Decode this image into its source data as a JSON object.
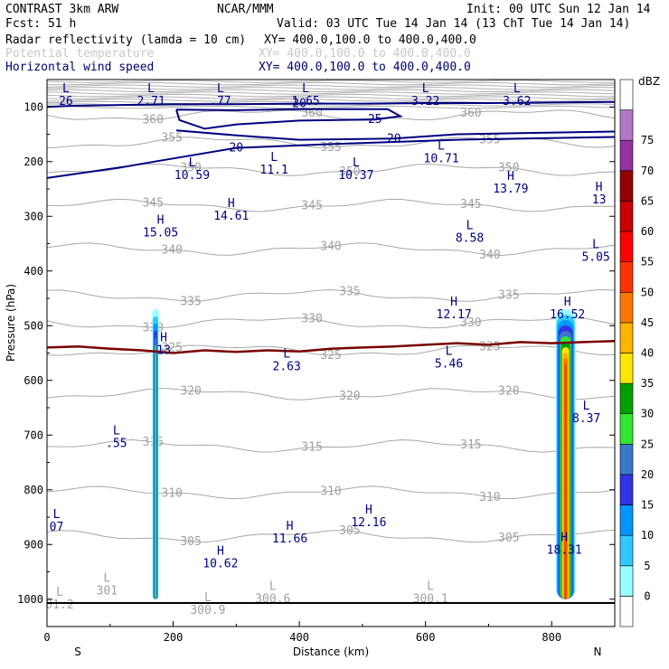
{
  "header": {
    "model": "CONTRAST  3km ARW",
    "institution": "NCAR/MMM",
    "init": "Init: 00 UTC Sun 12 Jan 14",
    "fcst": "Fcst:   51 h",
    "valid": "Valid: 03 UTC Tue 14 Jan 14 (13 ChT Tue 14 Jan 14)",
    "fields": [
      {
        "name": "Radar reflectivity (lamda = 10 cm)",
        "xy": "XY= 400.0,100.0 to 400.0,400.0",
        "color": "#000000"
      },
      {
        "name": "Potential temperature",
        "xy": "XY= 400.0,100.0 to 400.0,400.0",
        "color": "#c8c8c8"
      },
      {
        "name": "Horizontal wind speed",
        "xy": "XY= 400.0,100.0 to 400.0,400.0",
        "color": "#00006e"
      }
    ]
  },
  "chart_data": {
    "type": "cross-section",
    "xlabel": "Distance (km)",
    "ylabel": "Pressure (hPa)",
    "xlim": [
      0,
      900
    ],
    "ylim": [
      1050,
      50
    ],
    "xticks": [
      0,
      200,
      400,
      600,
      800
    ],
    "yticks": [
      100,
      200,
      300,
      400,
      500,
      600,
      700,
      800,
      900,
      1000
    ],
    "x_end_labels": {
      "left": "S",
      "right": "N"
    },
    "colorbar": {
      "unit": "dBZ",
      "levels": [
        0,
        5,
        10,
        15,
        20,
        25,
        30,
        35,
        40,
        45,
        50,
        55,
        60,
        65,
        70,
        75
      ],
      "colors": [
        "#ffffff",
        "#96ffff",
        "#32c8ff",
        "#0096ff",
        "#3232e6",
        "#3c78c8",
        "#32e632",
        "#00a000",
        "#ffe600",
        "#ffb400",
        "#ff7800",
        "#ff3200",
        "#ff0000",
        "#c80000",
        "#960000",
        "#9632a0",
        "#b478c8",
        "#ffffff"
      ]
    },
    "theta_contours": [
      {
        "value": 360,
        "p": 115
      },
      {
        "value": 355,
        "p": 165
      },
      {
        "value": 350,
        "p": 215
      },
      {
        "value": 345,
        "p": 280
      },
      {
        "value": 340,
        "p": 360
      },
      {
        "value": 335,
        "p": 445
      },
      {
        "value": 330,
        "p": 495
      },
      {
        "value": 325,
        "p": 545
      },
      {
        "value": 320,
        "p": 625
      },
      {
        "value": 315,
        "p": 720
      },
      {
        "value": 310,
        "p": 805
      },
      {
        "value": 305,
        "p": 885
      }
    ],
    "wind_contours": [
      {
        "value": 20,
        "points": [
          [
            0,
            100
          ],
          [
            40,
            98
          ],
          [
            100,
            97
          ],
          [
            200,
            95
          ],
          [
            300,
            95
          ],
          [
            400,
            94
          ],
          [
            500,
            94
          ],
          [
            600,
            93
          ],
          [
            700,
            93
          ],
          [
            800,
            92
          ],
          [
            900,
            91
          ]
        ]
      },
      {
        "value": 25,
        "points": [
          [
            205,
            105
          ],
          [
            300,
            106
          ],
          [
            400,
            104
          ],
          [
            540,
            104
          ],
          [
            560,
            117
          ],
          [
            520,
            123
          ],
          [
            400,
            125
          ],
          [
            300,
            132
          ],
          [
            250,
            140
          ],
          [
            210,
            124
          ],
          [
            205,
            105
          ]
        ]
      },
      {
        "value": 20,
        "points": [
          [
            205,
            143
          ],
          [
            300,
            152
          ],
          [
            400,
            160
          ],
          [
            550,
            158
          ],
          [
            650,
            150
          ],
          [
            750,
            148
          ],
          [
            900,
            145
          ]
        ]
      },
      {
        "value": 20,
        "points": [
          [
            0,
            230
          ],
          [
            60,
            220
          ],
          [
            120,
            210
          ],
          [
            170,
            200
          ],
          [
            300,
            175
          ],
          [
            450,
            168
          ],
          [
            650,
            160
          ],
          [
            900,
            155
          ]
        ]
      }
    ],
    "zero_isotherm": [
      [
        0,
        540
      ],
      [
        50,
        538
      ],
      [
        100,
        542
      ],
      [
        150,
        545
      ],
      [
        200,
        550
      ],
      [
        250,
        545
      ],
      [
        300,
        548
      ],
      [
        350,
        545
      ],
      [
        400,
        547
      ],
      [
        450,
        542
      ],
      [
        500,
        540
      ],
      [
        550,
        538
      ],
      [
        600,
        535
      ],
      [
        650,
        532
      ],
      [
        700,
        535
      ],
      [
        750,
        530
      ],
      [
        800,
        532
      ],
      [
        850,
        530
      ],
      [
        900,
        528
      ]
    ],
    "reflectivity_columns": [
      {
        "center_km": 172,
        "top_hPa": 470,
        "bottom_hPa": 1000,
        "max_dBZ": 30
      },
      {
        "center_km": 822,
        "top_hPa": 470,
        "bottom_hPa": 1000,
        "max_dBZ": 55
      }
    ],
    "annotations": [
      {
        "type": "L",
        "value": "26",
        "x": 30,
        "p": 80
      },
      {
        "type": "L",
        "value": "2.71",
        "x": 165,
        "p": 80
      },
      {
        "type": "L",
        "value": ".77",
        "x": 275,
        "p": 80
      },
      {
        "type": "L",
        "value": "1.65",
        "x": 410,
        "p": 80
      },
      {
        "type": "L",
        "value": "3.22",
        "x": 600,
        "p": 80
      },
      {
        "type": "L",
        "value": "3.62",
        "x": 745,
        "p": 80
      },
      {
        "type": "L",
        "value": "10.71",
        "x": 625,
        "p": 185
      },
      {
        "type": "L",
        "value": "10.59",
        "x": 230,
        "p": 215
      },
      {
        "type": "L",
        "value": "11.1",
        "x": 360,
        "p": 205
      },
      {
        "type": "L",
        "value": "10.37",
        "x": 490,
        "p": 215
      },
      {
        "type": "H",
        "value": "13.79",
        "x": 735,
        "p": 240
      },
      {
        "type": "H",
        "value": "13",
        "x": 875,
        "p": 260
      },
      {
        "type": "H",
        "value": "15.05",
        "x": 180,
        "p": 320
      },
      {
        "type": "H",
        "value": "14.61",
        "x": 292,
        "p": 290
      },
      {
        "type": "L",
        "value": "8.58",
        "x": 670,
        "p": 330
      },
      {
        "type": "L",
        "value": "5.05",
        "x": 870,
        "p": 365
      },
      {
        "type": "H",
        "value": "12.17",
        "x": 645,
        "p": 470
      },
      {
        "type": "H",
        "value": "16.52",
        "x": 825,
        "p": 470
      },
      {
        "type": "H",
        "value": "13",
        "x": 185,
        "p": 535
      },
      {
        "type": "L",
        "value": "2.63",
        "x": 380,
        "p": 565
      },
      {
        "type": "L",
        "value": "5.46",
        "x": 637,
        "p": 560
      },
      {
        "type": "L",
        "value": "8.37",
        "x": 855,
        "p": 660
      },
      {
        "type": "L",
        "value": ".55",
        "x": 110,
        "p": 705
      },
      {
        "type": "L",
        "value": "07",
        "x": 15,
        "p": 858
      },
      {
        "type": "H",
        "value": "12.16",
        "x": 510,
        "p": 850
      },
      {
        "type": "H",
        "value": "11.66",
        "x": 385,
        "p": 880
      },
      {
        "type": "H",
        "value": "18.31",
        "x": 820,
        "p": 900
      },
      {
        "type": "H",
        "value": "10.62",
        "x": 275,
        "p": 925
      }
    ],
    "theta_min_labels": [
      {
        "type": "L",
        "value": "301",
        "x": 95,
        "p": 975
      },
      {
        "type": "L",
        "value": "01.2",
        "x": 20,
        "p": 1000
      },
      {
        "type": "L",
        "value": "300.9",
        "x": 255,
        "p": 1010
      },
      {
        "type": "L",
        "value": "300.6",
        "x": 358,
        "p": 990
      },
      {
        "type": "L",
        "value": "300.1",
        "x": 608,
        "p": 990
      }
    ]
  }
}
